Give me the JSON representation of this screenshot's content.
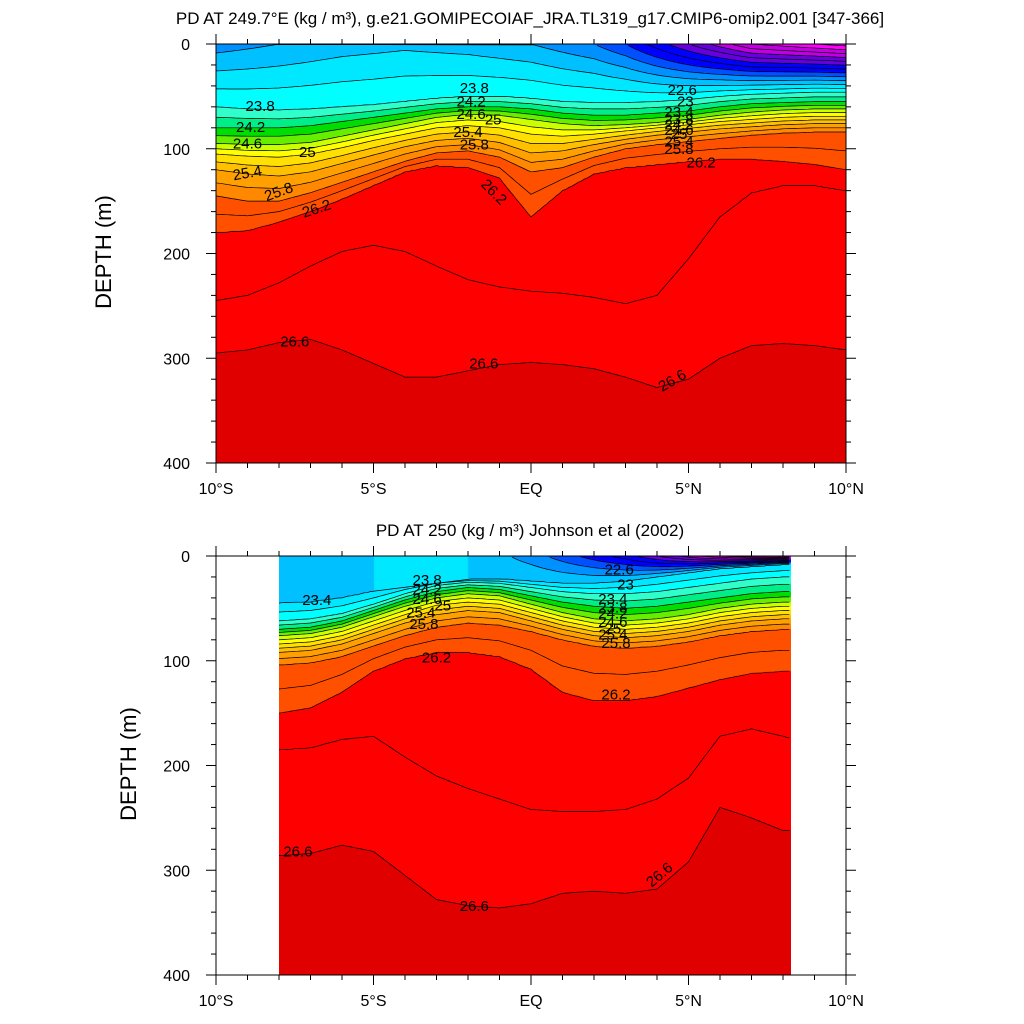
{
  "chart_data": [
    {
      "type": "heatmap",
      "title": "PD AT 249.7°E (kg / m³), g.e21.GOMIPECOIAF_JRA.TL319_g17.CMIP6-omip2.001 [347-366]",
      "ylabel": "DEPTH (m)",
      "xlabel": "",
      "xlim": [
        -10,
        10
      ],
      "ylim": [
        0,
        400
      ],
      "y_reversed": true,
      "x_ticks": [
        {
          "value": -10,
          "label": "10°S"
        },
        {
          "value": -5,
          "label": "5°S"
        },
        {
          "value": 0,
          "label": "EQ"
        },
        {
          "value": 5,
          "label": "5°N"
        },
        {
          "value": 10,
          "label": "10°N"
        }
      ],
      "y_ticks": [
        0,
        100,
        200,
        300,
        400
      ],
      "contour_interval": 0.2,
      "data_extent": [
        -10,
        10
      ],
      "surface_field": {
        "x": [
          -10,
          -8,
          -6,
          -4,
          -2,
          0,
          2,
          3,
          4,
          5,
          6,
          7,
          8,
          9,
          10
        ],
        "pd": [
          23.1,
          23.2,
          23.3,
          23.35,
          23.3,
          23.2,
          23.0,
          22.8,
          22.5,
          22.2,
          21.9,
          21.6,
          21.5,
          21.4,
          21.3
        ]
      },
      "isopycnal_depths": {
        "x": [
          -10,
          -9,
          -8,
          -7,
          -6,
          -5,
          -4,
          -3,
          -2,
          -1,
          0,
          1,
          2,
          3,
          4,
          5,
          6,
          7,
          8,
          9,
          10
        ],
        "levels": [
          {
            "pd": 23.8,
            "depth": [
              60,
              62,
              63,
              62,
              60,
              58,
              55,
              52,
              50,
              50,
              52,
              55,
              56,
              56,
              55,
              53,
              50,
              48,
              47,
              46,
              46
            ]
          },
          {
            "pd": 24.2,
            "depth": [
              80,
              80,
              80,
              78,
              74,
              70,
              66,
              62,
              60,
              60,
              62,
              66,
              68,
              68,
              66,
              64,
              60,
              57,
              56,
              55,
              55
            ]
          },
          {
            "pd": 24.6,
            "depth": [
              95,
              96,
              96,
              94,
              88,
              82,
              76,
              70,
              67,
              68,
              72,
              76,
              78,
              77,
              75,
              72,
              68,
              65,
              63,
              62,
              62
            ]
          },
          {
            "pd": 25.0,
            "depth": [
              105,
              107,
              108,
              105,
              99,
              92,
              86,
              80,
              78,
              80,
              86,
              88,
              86,
              83,
              80,
              77,
              74,
              72,
              70,
              69,
              69
            ]
          },
          {
            "pd": 25.4,
            "depth": [
              120,
              124,
              126,
              122,
              114,
              106,
              98,
              92,
              90,
              94,
              104,
              102,
              96,
              91,
              87,
              84,
              81,
              79,
              77,
              76,
              76
            ]
          },
          {
            "pd": 25.8,
            "depth": [
              145,
              150,
              150,
              142,
              132,
              122,
              112,
              104,
              102,
              108,
              122,
              118,
              108,
              100,
              96,
              93,
              90,
              87,
              85,
              84,
              84
            ]
          },
          {
            "pd": 26.2,
            "depth": [
              180,
              178,
              170,
              160,
              148,
              135,
              122,
              116,
              118,
              128,
              165,
              140,
              124,
              118,
              115,
              112,
              110,
              110,
              112,
              115,
              120
            ]
          },
          {
            "pd": 26.4,
            "depth": [
              245,
              240,
              228,
              212,
              198,
              192,
              198,
              212,
              225,
              232,
              236,
              238,
              242,
              248,
              240,
              205,
              165,
              142,
              135,
              135,
              140
            ]
          },
          {
            "pd": 26.6,
            "depth": [
              295,
              292,
              285,
              282,
              292,
              305,
              318,
              318,
              312,
              306,
              304,
              306,
              310,
              318,
              328,
              320,
              300,
              288,
              286,
              288,
              292
            ]
          },
          {
            "pd": 26.8,
            "depth": [
              368,
              372,
              380,
              390,
              398,
              400,
              400,
              400,
              398,
              395,
              392,
              392,
              394,
              398,
              400,
              400,
              400,
              400,
              400,
              400,
              400
            ]
          }
        ]
      },
      "contour_labels": [
        {
          "text": "23.8",
          "x": -8.6,
          "y": 60,
          "angle": 0
        },
        {
          "text": "24.2",
          "x": -8.9,
          "y": 80,
          "angle": 0
        },
        {
          "text": "24.6",
          "x": -9.0,
          "y": 96,
          "angle": 0
        },
        {
          "text": "25",
          "x": -7.1,
          "y": 104,
          "angle": 0
        },
        {
          "text": "25.4",
          "x": -9.0,
          "y": 124,
          "angle": -10
        },
        {
          "text": "25.8",
          "x": -8.0,
          "y": 142,
          "angle": -20
        },
        {
          "text": "26.2",
          "x": -6.8,
          "y": 158,
          "angle": -18
        },
        {
          "text": "23.8",
          "x": -1.8,
          "y": 43,
          "angle": 0
        },
        {
          "text": "24.2",
          "x": -1.9,
          "y": 56,
          "angle": 0
        },
        {
          "text": "24.6",
          "x": -1.9,
          "y": 68,
          "angle": 0
        },
        {
          "text": "25",
          "x": -1.2,
          "y": 73,
          "angle": 0
        },
        {
          "text": "25.4",
          "x": -2.0,
          "y": 85,
          "angle": 0
        },
        {
          "text": "25.8",
          "x": -1.8,
          "y": 97,
          "angle": 0
        },
        {
          "text": "26.2",
          "x": -1.2,
          "y": 142,
          "angle": 45
        },
        {
          "text": "22.6",
          "x": 4.8,
          "y": 45,
          "angle": 0
        },
        {
          "text": "23",
          "x": 4.9,
          "y": 56,
          "angle": 0
        },
        {
          "text": "23.4",
          "x": 4.7,
          "y": 66,
          "angle": 0
        },
        {
          "text": "23.8",
          "x": 4.7,
          "y": 73,
          "angle": 0
        },
        {
          "text": "24.2",
          "x": 4.7,
          "y": 78,
          "angle": 0
        },
        {
          "text": "24.6",
          "x": 4.7,
          "y": 83,
          "angle": 0
        },
        {
          "text": "25",
          "x": 4.7,
          "y": 87,
          "angle": 0
        },
        {
          "text": "25.4",
          "x": 4.7,
          "y": 94,
          "angle": 0
        },
        {
          "text": "25.8",
          "x": 4.7,
          "y": 101,
          "angle": 0
        },
        {
          "text": "26.2",
          "x": 5.4,
          "y": 114,
          "angle": 0
        },
        {
          "text": "26.6",
          "x": -7.5,
          "y": 285,
          "angle": 0
        },
        {
          "text": "26.6",
          "x": -1.5,
          "y": 306,
          "angle": 0
        },
        {
          "text": "26.6",
          "x": 4.5,
          "y": 322,
          "angle": -30
        }
      ]
    },
    {
      "type": "heatmap",
      "title": "PD AT 250 (kg / m³) Johnson et al (2002)",
      "ylabel": "DEPTH (m)",
      "xlabel": "",
      "xlim": [
        -10,
        10
      ],
      "ylim": [
        0,
        400
      ],
      "y_reversed": true,
      "x_ticks": [
        {
          "value": -10,
          "label": "10°S"
        },
        {
          "value": -5,
          "label": "5°S"
        },
        {
          "value": 0,
          "label": "EQ"
        },
        {
          "value": 5,
          "label": "5°N"
        },
        {
          "value": 10,
          "label": "10°N"
        }
      ],
      "y_ticks": [
        0,
        100,
        200,
        300,
        400
      ],
      "contour_interval": 0.2,
      "data_extent": [
        -8,
        8.25
      ],
      "surface_field": {
        "x": [
          -8,
          -6,
          -4,
          -2,
          0,
          1,
          2,
          3,
          4,
          5,
          6,
          7,
          8,
          8.25
        ],
        "pd": [
          23.2,
          23.3,
          23.5,
          23.4,
          23.1,
          22.9,
          22.7,
          22.5,
          22.2,
          21.9,
          21.6,
          21.4,
          21.3,
          21.3
        ]
      },
      "isopycnal_depths": {
        "x": [
          -8,
          -7,
          -6,
          -5,
          -4,
          -3,
          -2,
          -1,
          0,
          1,
          2,
          3,
          4,
          5,
          6,
          7,
          8,
          8.25
        ],
        "levels": [
          {
            "pd": 23.4,
            "depth": [
              45,
              44,
              40,
              34,
              28,
              24,
              22,
              22,
              24,
              26,
              26,
              24,
              20,
              16,
              12,
              10,
              8,
              8
            ]
          },
          {
            "pd": 23.8,
            "depth": [
              62,
              60,
              55,
              46,
              36,
              28,
              25,
              26,
              30,
              34,
              36,
              36,
              34,
              30,
              26,
              22,
              20,
              20
            ]
          },
          {
            "pd": 24.2,
            "depth": [
              70,
              68,
              62,
              52,
              42,
              34,
              30,
              32,
              38,
              44,
              48,
              50,
              48,
              44,
              40,
              36,
              34,
              34
            ]
          },
          {
            "pd": 24.6,
            "depth": [
              76,
              74,
              68,
              58,
              48,
              40,
              36,
              38,
              46,
              54,
              60,
              62,
              60,
              56,
              50,
              46,
              44,
              44
            ]
          },
          {
            "pd": 25.0,
            "depth": [
              84,
              82,
              76,
              66,
              56,
              47,
              44,
              46,
              54,
              62,
              68,
              70,
              68,
              64,
              58,
              54,
              52,
              52
            ]
          },
          {
            "pd": 25.4,
            "depth": [
              92,
              90,
              84,
              74,
              64,
              56,
              52,
              54,
              62,
              70,
              76,
              78,
              76,
              72,
              66,
              62,
              60,
              60
            ]
          },
          {
            "pd": 25.8,
            "depth": [
              104,
              102,
              96,
              86,
              76,
              68,
              64,
              66,
              72,
              80,
              86,
              88,
              86,
              82,
              76,
              72,
              70,
              70
            ]
          },
          {
            "pd": 26.2,
            "depth": [
              150,
              145,
              130,
              110,
              98,
              92,
              92,
              96,
              108,
              130,
              138,
              138,
              134,
              126,
              118,
              112,
              110,
              110
            ]
          },
          {
            "pd": 26.4,
            "depth": [
              185,
              183,
              175,
              172,
              192,
              210,
              222,
              232,
              242,
              244,
              244,
              242,
              232,
              212,
              172,
              165,
              172,
              174
            ]
          },
          {
            "pd": 26.6,
            "depth": [
              286,
              284,
              276,
              282,
              305,
              328,
              334,
              336,
              332,
              322,
              320,
              322,
              318,
              292,
              240,
              250,
              262,
              262
            ]
          },
          {
            "pd": 26.8,
            "depth": [
              400,
              398,
              395,
              398,
              400,
              400,
              400,
              400,
              398,
              392,
              396,
              400,
              400,
              398,
              392,
              396,
              400,
              400
            ]
          }
        ]
      },
      "contour_labels": [
        {
          "text": "23.4",
          "x": -6.8,
          "y": 43,
          "angle": 0
        },
        {
          "text": "23.8",
          "x": -3.3,
          "y": 24,
          "angle": 0
        },
        {
          "text": "24.2",
          "x": -3.3,
          "y": 33,
          "angle": 0
        },
        {
          "text": "24.6",
          "x": -3.3,
          "y": 42,
          "angle": 0
        },
        {
          "text": "25",
          "x": -2.8,
          "y": 48,
          "angle": 0
        },
        {
          "text": "25.4",
          "x": -3.5,
          "y": 55,
          "angle": 0
        },
        {
          "text": "25.8",
          "x": -3.4,
          "y": 66,
          "angle": 0
        },
        {
          "text": "26.2",
          "x": -3.0,
          "y": 98,
          "angle": 0
        },
        {
          "text": "22.6",
          "x": 2.8,
          "y": 14,
          "angle": 0
        },
        {
          "text": "23",
          "x": 3.0,
          "y": 28,
          "angle": 0
        },
        {
          "text": "23.4",
          "x": 2.6,
          "y": 42,
          "angle": 0
        },
        {
          "text": "23.8",
          "x": 2.6,
          "y": 50,
          "angle": 0
        },
        {
          "text": "24.2",
          "x": 2.6,
          "y": 56,
          "angle": 0
        },
        {
          "text": "24.6",
          "x": 2.6,
          "y": 64,
          "angle": 0
        },
        {
          "text": "25",
          "x": 2.6,
          "y": 70,
          "angle": 0
        },
        {
          "text": "25.4",
          "x": 2.6,
          "y": 76,
          "angle": 0
        },
        {
          "text": "25.8",
          "x": 2.7,
          "y": 84,
          "angle": 0
        },
        {
          "text": "26.2",
          "x": 2.7,
          "y": 133,
          "angle": 0
        },
        {
          "text": "26.6",
          "x": -7.4,
          "y": 283,
          "angle": 0
        },
        {
          "text": "26.6",
          "x": -1.8,
          "y": 335,
          "angle": 0
        },
        {
          "text": "26.6",
          "x": 4.1,
          "y": 305,
          "angle": -40
        }
      ]
    }
  ],
  "color_scale": {
    "levels": [
      21.0,
      21.6,
      22.0,
      22.4,
      22.8,
      23.0,
      23.2,
      23.4,
      23.6,
      23.8,
      24.0,
      24.2,
      24.4,
      24.6,
      24.8,
      25.0,
      25.2,
      25.4,
      25.6,
      25.8,
      26.2,
      26.6,
      26.9
    ],
    "colors": [
      "#ff00ff",
      "#c000e0",
      "#6600dd",
      "#0000ff",
      "#0050ff",
      "#0090ff",
      "#00c0ff",
      "#00e8ff",
      "#00ffff",
      "#30ffcc",
      "#00ee88",
      "#00dd00",
      "#66ee00",
      "#ccff00",
      "#ffff00",
      "#ffe000",
      "#ffc000",
      "#ffa000",
      "#ff8800",
      "#ff5000",
      "#ff0000",
      "#e00000",
      "#c00000"
    ],
    "missing": "#ffffff"
  }
}
